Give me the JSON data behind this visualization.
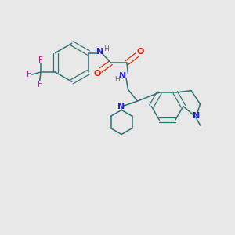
{
  "bg_color": "#e8e8e8",
  "bond_color": "#2d7070",
  "N_color": "#2020dd",
  "O_color": "#dd2200",
  "F_color": "#dd00aa",
  "H_color": "#666666",
  "figsize": [
    3.0,
    3.0
  ],
  "dpi": 100,
  "xlim": [
    0,
    10
  ],
  "ylim": [
    0,
    10
  ]
}
